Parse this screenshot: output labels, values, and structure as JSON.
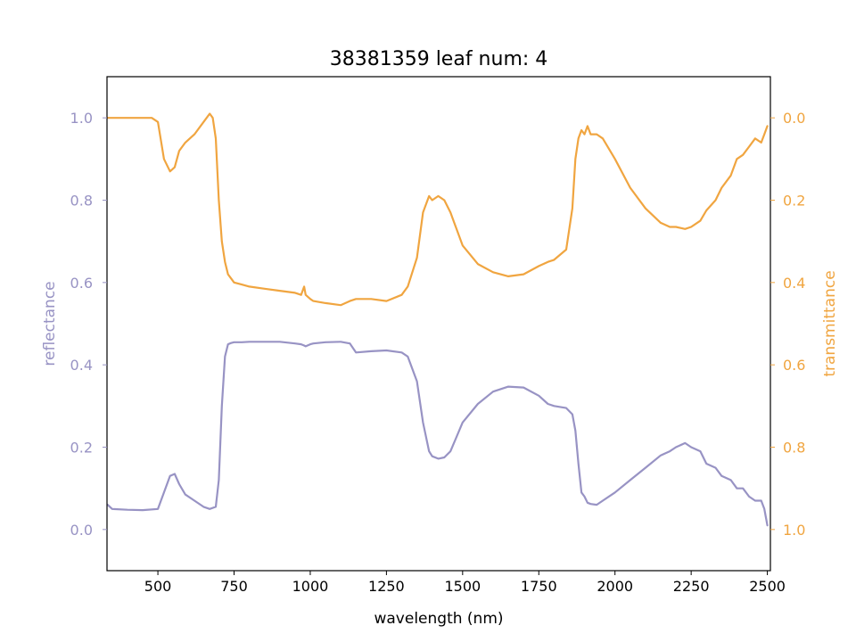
{
  "chart_data": {
    "type": "line",
    "title": "38381359 leaf num: 4",
    "xlabel": "wavelength (nm)",
    "ylabel_left": "reflectance",
    "ylabel_right": "transmittance",
    "xlim": [
      333,
      2510
    ],
    "ylim_left": [
      -0.1,
      1.1
    ],
    "ylim_right": [
      1.1,
      -0.1
    ],
    "x_ticks": [
      500,
      750,
      1000,
      1250,
      1500,
      1750,
      2000,
      2250,
      2500
    ],
    "y_ticks_left": [
      0.0,
      0.2,
      0.4,
      0.6,
      0.8,
      1.0
    ],
    "y_ticks_right": [
      0.0,
      0.2,
      0.4,
      0.6,
      0.8,
      1.0
    ],
    "grid": false,
    "colors": {
      "reflectance": "#9893c4",
      "transmittance": "#f0a540",
      "axes": "#000000"
    },
    "series": [
      {
        "name": "reflectance",
        "axis": "left",
        "x": [
          335,
          350,
          400,
          450,
          500,
          520,
          540,
          555,
          570,
          590,
          620,
          650,
          670,
          690,
          700,
          710,
          720,
          730,
          740,
          750,
          775,
          800,
          850,
          900,
          950,
          970,
          980,
          985,
          1000,
          1010,
          1050,
          1100,
          1130,
          1150,
          1200,
          1250,
          1300,
          1320,
          1350,
          1370,
          1390,
          1400,
          1420,
          1440,
          1460,
          1480,
          1500,
          1550,
          1600,
          1650,
          1700,
          1750,
          1780,
          1800,
          1840,
          1860,
          1870,
          1880,
          1890,
          1900,
          1910,
          1920,
          1940,
          1960,
          2000,
          2050,
          2100,
          2150,
          2180,
          2200,
          2230,
          2250,
          2280,
          2300,
          2330,
          2350,
          2380,
          2400,
          2420,
          2440,
          2460,
          2480,
          2490,
          2495,
          2500
        ],
        "y": [
          0.06,
          0.05,
          0.048,
          0.047,
          0.05,
          0.09,
          0.13,
          0.135,
          0.11,
          0.085,
          0.07,
          0.055,
          0.05,
          0.055,
          0.12,
          0.3,
          0.42,
          0.45,
          0.453,
          0.455,
          0.455,
          0.456,
          0.456,
          0.456,
          0.452,
          0.45,
          0.447,
          0.445,
          0.45,
          0.452,
          0.455,
          0.456,
          0.452,
          0.43,
          0.433,
          0.435,
          0.43,
          0.42,
          0.36,
          0.26,
          0.19,
          0.178,
          0.172,
          0.175,
          0.19,
          0.225,
          0.26,
          0.305,
          0.335,
          0.347,
          0.345,
          0.325,
          0.305,
          0.3,
          0.295,
          0.28,
          0.24,
          0.16,
          0.09,
          0.08,
          0.065,
          0.062,
          0.06,
          0.07,
          0.09,
          0.12,
          0.15,
          0.18,
          0.19,
          0.2,
          0.21,
          0.2,
          0.19,
          0.16,
          0.15,
          0.13,
          0.12,
          0.1,
          0.1,
          0.08,
          0.07,
          0.07,
          0.05,
          0.03,
          0.01
        ]
      },
      {
        "name": "transmittance",
        "axis": "right",
        "x": [
          335,
          350,
          400,
          450,
          480,
          500,
          520,
          540,
          555,
          570,
          590,
          620,
          650,
          670,
          680,
          690,
          700,
          710,
          720,
          730,
          740,
          750,
          775,
          800,
          850,
          900,
          950,
          970,
          980,
          985,
          1000,
          1010,
          1050,
          1100,
          1130,
          1150,
          1200,
          1250,
          1300,
          1320,
          1350,
          1370,
          1390,
          1400,
          1420,
          1440,
          1460,
          1480,
          1500,
          1550,
          1600,
          1650,
          1700,
          1750,
          1780,
          1800,
          1840,
          1860,
          1870,
          1880,
          1890,
          1900,
          1910,
          1920,
          1940,
          1960,
          2000,
          2050,
          2100,
          2150,
          2180,
          2200,
          2230,
          2250,
          2280,
          2300,
          2330,
          2350,
          2380,
          2400,
          2420,
          2440,
          2460,
          2480,
          2490,
          2500
        ],
        "y": [
          0.0,
          0.0,
          0.0,
          0.0,
          0.0,
          0.01,
          0.1,
          0.13,
          0.12,
          0.08,
          0.06,
          0.04,
          0.01,
          -0.01,
          0.0,
          0.05,
          0.2,
          0.3,
          0.35,
          0.38,
          0.39,
          0.4,
          0.405,
          0.41,
          0.415,
          0.42,
          0.425,
          0.43,
          0.41,
          0.43,
          0.44,
          0.445,
          0.45,
          0.455,
          0.445,
          0.44,
          0.44,
          0.445,
          0.43,
          0.41,
          0.34,
          0.23,
          0.19,
          0.2,
          0.19,
          0.2,
          0.23,
          0.27,
          0.31,
          0.355,
          0.375,
          0.385,
          0.38,
          0.36,
          0.35,
          0.345,
          0.32,
          0.22,
          0.1,
          0.05,
          0.03,
          0.04,
          0.02,
          0.04,
          0.04,
          0.05,
          0.1,
          0.17,
          0.22,
          0.255,
          0.265,
          0.265,
          0.27,
          0.265,
          0.25,
          0.225,
          0.2,
          0.17,
          0.14,
          0.1,
          0.09,
          0.07,
          0.05,
          0.06,
          0.04,
          0.02
        ]
      }
    ]
  }
}
